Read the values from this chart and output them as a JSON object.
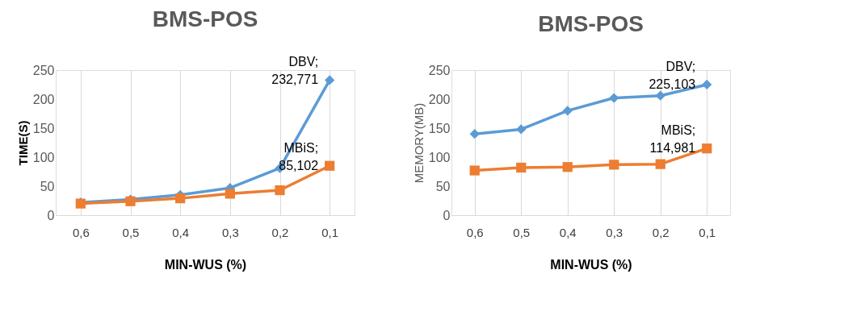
{
  "chart_data": [
    {
      "type": "line",
      "title": "BMS-POS",
      "xlabel": "MIN-WUS (%)",
      "ylabel": "TIME(S)",
      "categories": [
        "0,6",
        "0,5",
        "0,4",
        "0,3",
        "0,2",
        "0,1"
      ],
      "series": [
        {
          "color": "#5b9bd5",
          "marker": "diamond",
          "values": [
            22,
            27,
            35,
            47,
            81,
            232.771
          ]
        },
        {
          "color": "#ed7d31",
          "marker": "square",
          "values": [
            20,
            24,
            29,
            37,
            43,
            85.102
          ]
        }
      ],
      "ylim": [
        0,
        250
      ],
      "yticks": [
        0,
        50,
        100,
        150,
        200,
        250
      ],
      "grid": "x",
      "legend": false,
      "annotations": [
        {
          "text": "DBV; 232,771",
          "x": "0,1",
          "y": 232.771
        },
        {
          "text": "MBiS; 85,102",
          "x": "0,1",
          "y": 85.102
        }
      ]
    },
    {
      "type": "line",
      "title": "BMS-POS",
      "xlabel": "MIN-WUS (%)",
      "ylabel": "MEMORY(MB)",
      "categories": [
        "0,6",
        "0,5",
        "0,4",
        "0,3",
        "0,2",
        "0,1"
      ],
      "series": [
        {
          "color": "#5b9bd5",
          "marker": "diamond",
          "values": [
            140,
            148,
            180,
            202,
            206,
            225.103
          ]
        },
        {
          "color": "#ed7d31",
          "marker": "square",
          "values": [
            77,
            82,
            83,
            87,
            88,
            114.981
          ]
        }
      ],
      "ylim": [
        0,
        250
      ],
      "yticks": [
        0,
        50,
        100,
        150,
        200,
        250
      ],
      "grid": "x",
      "legend": false,
      "annotations": [
        {
          "text": "DBV; 225,103",
          "x": "0,1",
          "y": 225.103
        },
        {
          "text": "MBiS; 114,981",
          "x": "0,1",
          "y": 114.981
        }
      ]
    }
  ]
}
